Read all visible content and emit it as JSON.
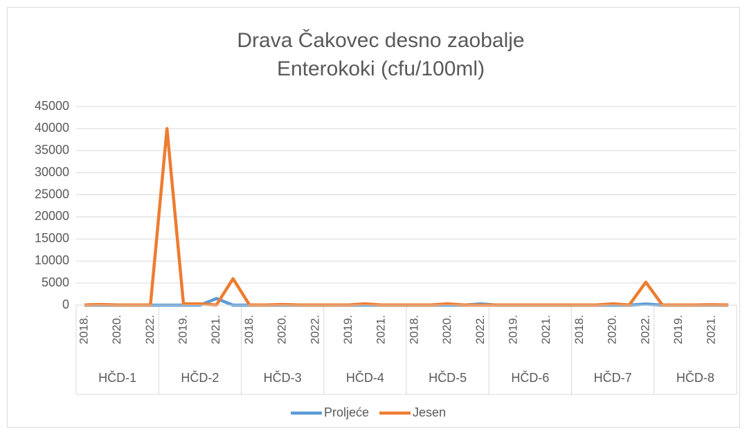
{
  "chart_data": {
    "type": "line",
    "title": [
      "Drava Čakovec desno zaobalje",
      "Enterokoki (cfu/100ml)"
    ],
    "groups": [
      "HČD-1",
      "HČD-2",
      "HČD-3",
      "HČD-4",
      "HČD-5",
      "HČD-6",
      "HČD-7",
      "HČD-8"
    ],
    "categories": [
      "2018.",
      null,
      "2020.",
      null,
      "2022.",
      null,
      "2019.",
      null,
      "2021.",
      null,
      "2018.",
      null,
      "2020.",
      null,
      "2022.",
      null,
      "2019.",
      null,
      "2021.",
      null,
      "2018.",
      null,
      "2020.",
      null,
      "2022.",
      null,
      "2019.",
      null,
      "2021.",
      null,
      "2018.",
      null,
      "2020.",
      null,
      "2022.",
      null,
      "2019.",
      null,
      "2021.",
      null
    ],
    "series": [
      {
        "name": "Proljeće",
        "color": "#5b9bd5",
        "values": [
          0,
          0,
          0,
          0,
          0,
          0,
          0,
          0,
          1500,
          0,
          0,
          0,
          0,
          0,
          0,
          0,
          0,
          0,
          0,
          0,
          0,
          0,
          0,
          0,
          300,
          0,
          0,
          0,
          0,
          0,
          0,
          0,
          0,
          0,
          250,
          0,
          0,
          0,
          0,
          0
        ]
      },
      {
        "name": "Jesen",
        "color": "#ed7d31",
        "values": [
          50,
          150,
          50,
          50,
          50,
          40000,
          300,
          300,
          50,
          6000,
          50,
          50,
          150,
          50,
          50,
          50,
          50,
          300,
          50,
          50,
          50,
          50,
          300,
          50,
          50,
          50,
          50,
          50,
          50,
          50,
          50,
          50,
          300,
          50,
          5200,
          50,
          50,
          50,
          100,
          50
        ]
      }
    ],
    "ylim": [
      0,
      45000
    ],
    "yticks": [
      0,
      5000,
      10000,
      15000,
      20000,
      25000,
      30000,
      35000,
      40000,
      45000
    ],
    "grid": true,
    "legend": "bottom"
  }
}
